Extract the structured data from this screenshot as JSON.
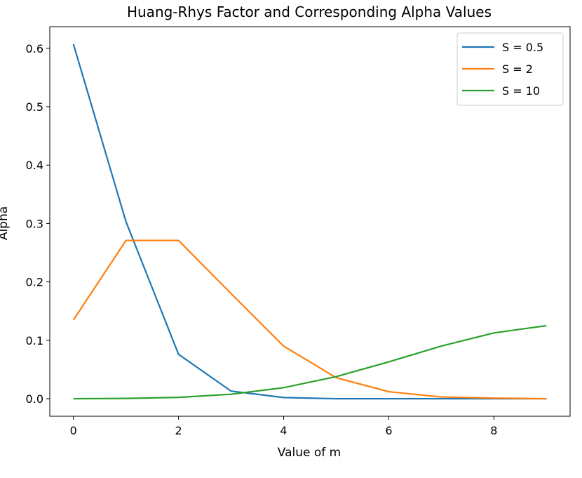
{
  "chart_data": {
    "type": "line",
    "title": "Huang-Rhys Factor and Corresponding Alpha Values",
    "xlabel": "Value of m",
    "ylabel": "Alpha",
    "x": [
      0,
      1,
      2,
      3,
      4,
      5,
      6,
      7,
      8,
      9
    ],
    "xlim": [
      -0.45,
      9.45
    ],
    "ylim": [
      -0.03,
      0.637
    ],
    "xticks": [
      0,
      2,
      4,
      6,
      8
    ],
    "yticks": [
      0.0,
      0.1,
      0.2,
      0.3,
      0.4,
      0.5,
      0.6
    ],
    "xtick_labels": [
      "0",
      "2",
      "4",
      "6",
      "8"
    ],
    "ytick_labels": [
      "0.0",
      "0.1",
      "0.2",
      "0.3",
      "0.4",
      "0.5",
      "0.6"
    ],
    "grid": false,
    "legend_position": "top-right",
    "series": [
      {
        "name": "S = 0.5",
        "color": "#1f77b4",
        "values": [
          0.607,
          0.303,
          0.076,
          0.013,
          0.002,
          0.0,
          0.0,
          0.0,
          0.0,
          0.0
        ]
      },
      {
        "name": "S = 2",
        "color": "#ff7f0e",
        "values": [
          0.135,
          0.271,
          0.271,
          0.18,
          0.09,
          0.036,
          0.012,
          0.003,
          0.001,
          0.0
        ]
      },
      {
        "name": "S = 10",
        "color": "#2ca02c",
        "values": [
          0.0,
          0.0005,
          0.0023,
          0.0076,
          0.0189,
          0.0378,
          0.0631,
          0.0901,
          0.1126,
          0.1251
        ]
      }
    ]
  }
}
